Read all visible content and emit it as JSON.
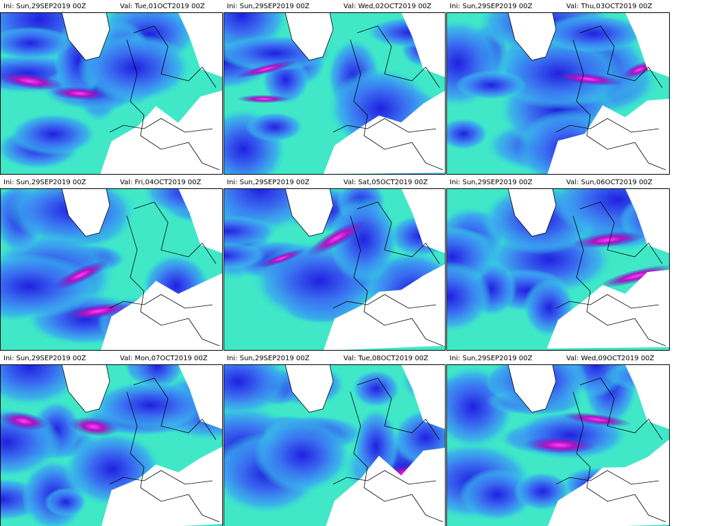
{
  "panels": [
    {
      "ini": "Ini: Sun,29SEP2019 00Z",
      "val": "Val: Tue,01OCT2019 00Z"
    },
    {
      "ini": "Ini: Sun,29SEP2019 00Z",
      "val": "Val: Wed,02OCT2019 00Z"
    },
    {
      "ini": "Ini: Sun,29SEP2019 00Z",
      "val": "Val: Thu,03OCT2019 00Z"
    },
    {
      "ini": "Ini: Sun,29SEP2019 00Z",
      "val": "Val: Fri,04OCT2019 00Z"
    },
    {
      "ini": "Ini: Sun,29SEP2019 00Z",
      "val": "Val: Sat,05OCT2019 00Z"
    },
    {
      "ini": "Ini: Sun,29SEP2019 00Z",
      "val": "Val: Sun,06OCT2019 00Z"
    },
    {
      "ini": "Ini: Sun,29SEP2019 00Z",
      "val": "Val: Mon,07OCT2019 00Z"
    },
    {
      "ini": "Ini: Sun,29SEP2019 00Z",
      "val": "Val: Tue,08OCT2019 00Z"
    },
    {
      "ini": "Ini: Sun,29SEP2019 00Z",
      "val": "Val: Wed,09OCT2019 00Z"
    }
  ]
}
